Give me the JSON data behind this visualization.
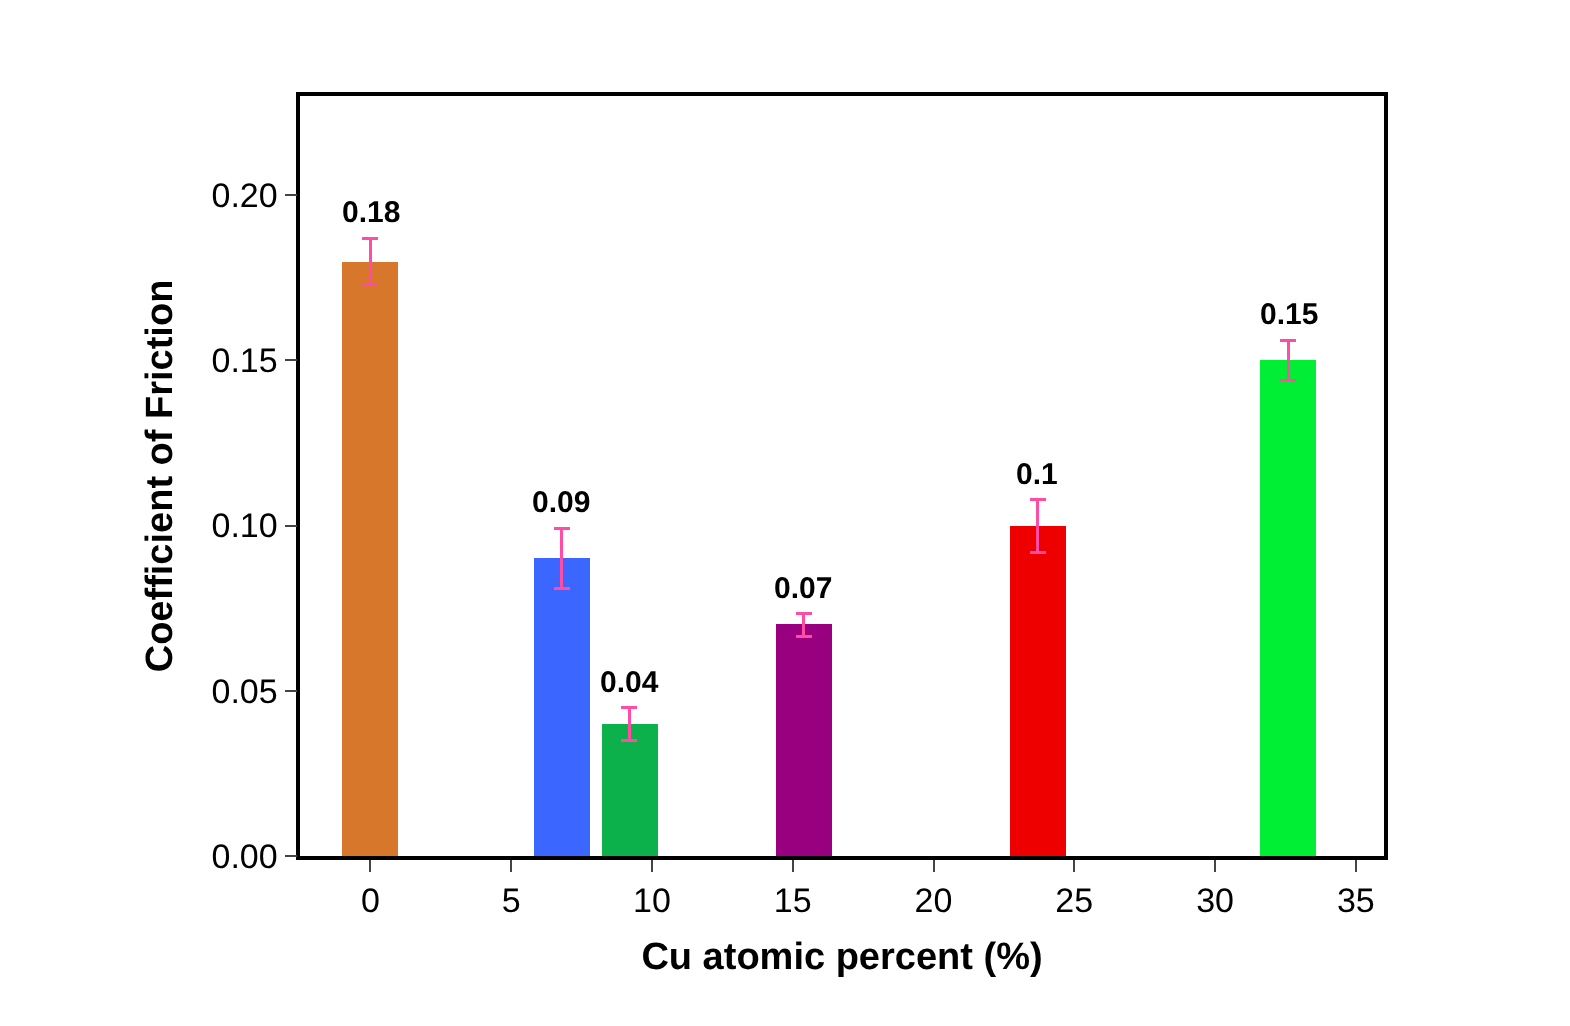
{
  "chart_data": {
    "type": "bar",
    "xlabel": "Cu atomic percent (%)",
    "ylabel": "Coefficient of Friction",
    "x": [
      0,
      6.8,
      9.2,
      15.4,
      23.7,
      32.6
    ],
    "values": [
      0.18,
      0.09,
      0.04,
      0.07,
      0.1,
      0.15
    ],
    "colors": [
      "#d6772b",
      "#3b66ff",
      "#0db14b",
      "#990080",
      "#ee0000",
      "#00ee33"
    ],
    "errors": [
      0.007,
      0.009,
      0.005,
      0.0035,
      0.008,
      0.006
    ],
    "data_labels": true,
    "xlim": [
      -2.5,
      36
    ],
    "xticks": [
      0,
      5,
      10,
      15,
      20,
      25,
      30,
      35
    ],
    "ylim": [
      0,
      0.23
    ],
    "yticks": [
      {
        "value": 0,
        "label": "0.00"
      },
      {
        "value": 0.05,
        "label": "0.05"
      },
      {
        "value": 0.1,
        "label": "0.10"
      },
      {
        "value": 0.15,
        "label": "0.15"
      },
      {
        "value": 0.2,
        "label": "0.20"
      }
    ],
    "grid": false
  }
}
